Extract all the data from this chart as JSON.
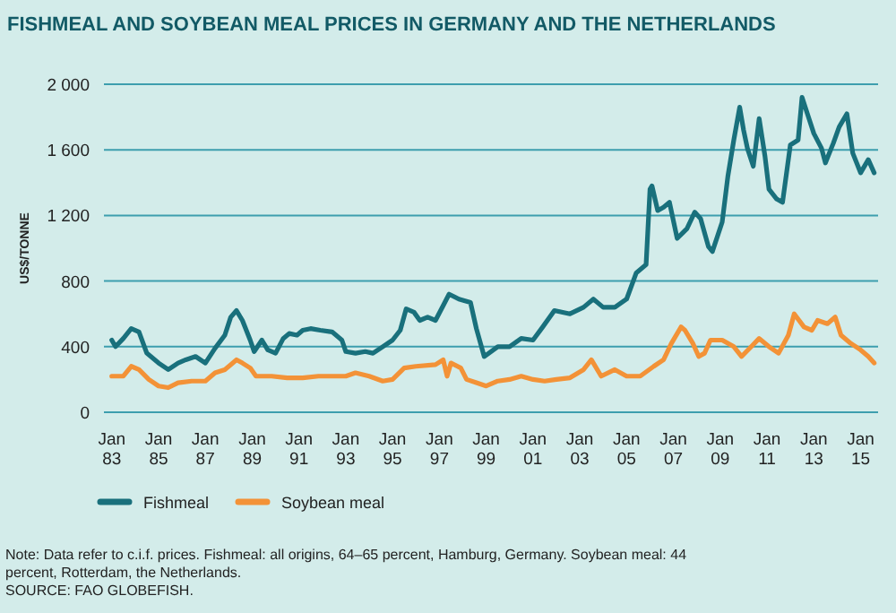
{
  "chart_data": {
    "type": "line",
    "title": "FISHMEAL AND SOYBEAN MEAL PRICES IN GERMANY AND THE NETHERLANDS",
    "ylabel": "US$/TONNE",
    "xlim": [
      "1982-09",
      "2015-10"
    ],
    "xticks": [
      {
        "value": "1983-01",
        "label": "Jan 83"
      },
      {
        "value": "1985-01",
        "label": "Jan 85"
      },
      {
        "value": "1987-01",
        "label": "Jan 87"
      },
      {
        "value": "1989-01",
        "label": "Jan 89"
      },
      {
        "value": "1991-01",
        "label": "Jan 91"
      },
      {
        "value": "1993-01",
        "label": "Jan 93"
      },
      {
        "value": "1995-01",
        "label": "Jan 95"
      },
      {
        "value": "1997-01",
        "label": "Jan 97"
      },
      {
        "value": "1999-01",
        "label": "Jan 99"
      },
      {
        "value": "2001-01",
        "label": "Jan 01"
      },
      {
        "value": "2003-01",
        "label": "Jan 03"
      },
      {
        "value": "2005-01",
        "label": "Jan 05"
      },
      {
        "value": "2007-01",
        "label": "Jan 07"
      },
      {
        "value": "2009-01",
        "label": "Jan 09"
      },
      {
        "value": "2011-01",
        "label": "Jan 11"
      },
      {
        "value": "2013-01",
        "label": "Jan 13"
      },
      {
        "value": "2015-01",
        "label": "Jan 15"
      }
    ],
    "ylim": [
      0,
      2000
    ],
    "yticks": [
      0,
      400,
      800,
      {
        "value": 1200,
        "label": "1 200"
      },
      {
        "value": 1600,
        "label": "1 600"
      },
      {
        "value": 2000,
        "label": "2 000"
      }
    ],
    "grid": "y",
    "legend": "bottom",
    "series": [
      {
        "name": "Fishmeal",
        "color": "#19707c",
        "x": [
          "1983-01",
          "1983-03",
          "1983-07",
          "1983-11",
          "1984-03",
          "1984-07",
          "1985-01",
          "1985-06",
          "1985-11",
          "1986-03",
          "1986-08",
          "1987-01",
          "1987-06",
          "1987-11",
          "1988-02",
          "1988-05",
          "1988-08",
          "1988-12",
          "1989-02",
          "1989-06",
          "1989-09",
          "1990-01",
          "1990-05",
          "1990-08",
          "1990-12",
          "1991-03",
          "1991-07",
          "1991-12",
          "1992-06",
          "1992-11",
          "1993-01",
          "1993-06",
          "1993-11",
          "1994-03",
          "1994-08",
          "1995-01",
          "1995-05",
          "1995-08",
          "1995-12",
          "1996-03",
          "1996-07",
          "1996-11",
          "1997-03",
          "1997-06",
          "1997-11",
          "1998-05",
          "1998-08",
          "1998-12",
          "1999-07",
          "2000-01",
          "2000-07",
          "2001-01",
          "2001-06",
          "2001-12",
          "2002-08",
          "2003-03",
          "2003-08",
          "2004-01",
          "2004-07",
          "2005-01",
          "2005-06",
          "2005-11",
          "2006-01",
          "2006-02",
          "2006-05",
          "2006-08",
          "2006-11",
          "2007-03",
          "2007-08",
          "2007-12",
          "2008-03",
          "2008-07",
          "2008-09",
          "2009-02",
          "2009-05",
          "2009-08",
          "2009-11",
          "2010-01",
          "2010-03",
          "2010-06",
          "2010-09",
          "2010-12",
          "2011-02",
          "2011-06",
          "2011-09",
          "2012-01",
          "2012-05",
          "2012-07",
          "2012-10",
          "2013-01",
          "2013-05",
          "2013-07",
          "2013-11",
          "2014-02",
          "2014-06",
          "2014-09",
          "2015-01",
          "2015-05",
          "2015-08"
        ],
        "values": [
          440,
          400,
          450,
          510,
          490,
          360,
          300,
          260,
          300,
          320,
          340,
          300,
          390,
          470,
          580,
          620,
          560,
          440,
          370,
          440,
          380,
          360,
          450,
          480,
          470,
          500,
          510,
          500,
          490,
          440,
          370,
          360,
          370,
          360,
          400,
          440,
          500,
          630,
          610,
          560,
          580,
          560,
          650,
          720,
          690,
          670,
          510,
          340,
          400,
          400,
          450,
          440,
          520,
          620,
          600,
          640,
          690,
          640,
          640,
          690,
          850,
          900,
          1360,
          1380,
          1230,
          1250,
          1280,
          1060,
          1120,
          1220,
          1180,
          1010,
          980,
          1160,
          1440,
          1660,
          1860,
          1720,
          1610,
          1500,
          1790,
          1560,
          1360,
          1300,
          1280,
          1630,
          1660,
          1920,
          1810,
          1700,
          1610,
          1520,
          1640,
          1740,
          1820,
          1580,
          1460,
          1540,
          1460
        ]
      },
      {
        "name": "Soybean meal",
        "color": "#f39237",
        "x": [
          "1983-01",
          "1983-07",
          "1983-11",
          "1984-03",
          "1984-08",
          "1985-01",
          "1985-06",
          "1985-11",
          "1986-06",
          "1987-01",
          "1987-06",
          "1987-11",
          "1988-02",
          "1988-05",
          "1988-08",
          "1988-12",
          "1989-03",
          "1989-11",
          "1990-07",
          "1991-03",
          "1991-11",
          "1992-07",
          "1993-01",
          "1993-06",
          "1994-01",
          "1994-08",
          "1995-01",
          "1995-07",
          "1996-01",
          "1996-11",
          "1997-03",
          "1997-05",
          "1997-07",
          "1997-12",
          "1998-03",
          "1998-08",
          "1999-01",
          "1999-07",
          "2000-01",
          "2000-07",
          "2001-01",
          "2001-07",
          "2002-01",
          "2002-08",
          "2003-03",
          "2003-07",
          "2003-12",
          "2004-07",
          "2005-01",
          "2005-08",
          "2006-03",
          "2006-08",
          "2006-12",
          "2007-05",
          "2007-07",
          "2007-11",
          "2008-02",
          "2008-05",
          "2008-08",
          "2009-02",
          "2009-08",
          "2009-12",
          "2010-05",
          "2010-09",
          "2011-02",
          "2011-07",
          "2011-12",
          "2012-03",
          "2012-08",
          "2012-12",
          "2013-03",
          "2013-08",
          "2013-12",
          "2014-03",
          "2014-08",
          "2015-01",
          "2015-05",
          "2015-08"
        ],
        "values": [
          220,
          220,
          280,
          260,
          200,
          160,
          150,
          180,
          190,
          190,
          240,
          260,
          290,
          320,
          300,
          270,
          220,
          220,
          210,
          210,
          220,
          220,
          220,
          240,
          220,
          190,
          200,
          270,
          280,
          290,
          320,
          220,
          300,
          270,
          200,
          180,
          160,
          190,
          200,
          220,
          200,
          190,
          200,
          210,
          260,
          320,
          220,
          260,
          220,
          220,
          280,
          320,
          420,
          520,
          500,
          420,
          340,
          360,
          440,
          440,
          400,
          340,
          400,
          450,
          400,
          360,
          470,
          600,
          520,
          500,
          560,
          540,
          580,
          470,
          420,
          380,
          340,
          300
        ]
      }
    ],
    "annotations": [
      "Note: Data refer to c.i.f. prices. Fishmeal: all origins, 64–65 percent, Hamburg, Germany. Soybean meal: 44 percent, Rotterdam, the Netherlands.",
      "SOURCE: FAO GLOBEFISH."
    ]
  }
}
